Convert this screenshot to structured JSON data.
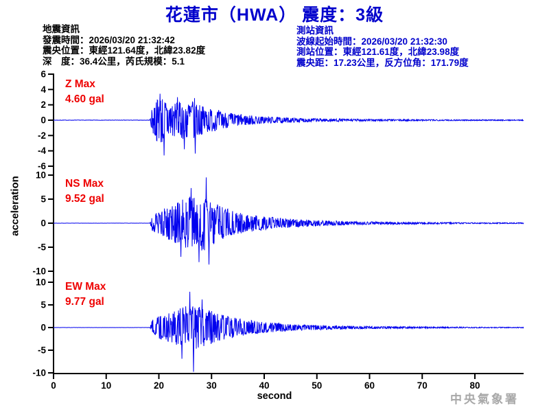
{
  "title": {
    "text": "花蓮市（HWA） 震度：3級",
    "color": "#0000CC"
  },
  "quake_info": {
    "heading": "地震資訊",
    "lines": [
      "發震時間：2026/03/20 21:32:42",
      "震央位置：東經121.64度，北緯23.82度",
      "深　度：36.4公里，芮氏規模：5.1"
    ],
    "color": "#000000"
  },
  "station_info": {
    "heading": "測站資訊",
    "lines": [
      "波線起始時間：2026/03/20 21:32:30",
      "測站位置：東經121.61度，北緯23.98度",
      "震央距：17.23公里，反方位角：171.79度"
    ],
    "color": "#0000CC"
  },
  "watermark": {
    "text": "中央氣象署",
    "color": "#A8A8A8"
  },
  "chart_data": {
    "type": "line",
    "title": "three-component strong-motion accelerogram",
    "xlabel": "second",
    "ylabel": "acceleration",
    "x_ticks": [
      0,
      10,
      20,
      30,
      40,
      50,
      60,
      70,
      80
    ],
    "x_range": [
      0,
      89.25
    ],
    "grid": false,
    "legend": "none",
    "wave_color": "#0000EE",
    "axis_color": "#000000",
    "label_color": "#EE0000",
    "onset_s": 18.3,
    "panels": [
      {
        "name": "Z",
        "label": "Z Max",
        "max_label": "4.60 gal",
        "max_gal": 4.6,
        "ylim": [
          -6,
          6
        ],
        "y_ticks": [
          6,
          4,
          2,
          0,
          -2,
          -4,
          -6
        ],
        "envelope": [
          [
            0,
            0.02
          ],
          [
            18.3,
            0.02
          ],
          [
            18.7,
            1.5
          ],
          [
            19.3,
            2.6
          ],
          [
            20.3,
            3.2
          ],
          [
            21.3,
            2.7
          ],
          [
            23,
            2.3
          ],
          [
            25,
            2.5
          ],
          [
            26.8,
            2.9
          ],
          [
            28,
            1.9
          ],
          [
            30,
            1.5
          ],
          [
            33,
            1.0
          ],
          [
            36,
            0.7
          ],
          [
            40,
            0.45
          ],
          [
            45,
            0.3
          ],
          [
            50,
            0.22
          ],
          [
            55,
            0.16
          ],
          [
            60,
            0.13
          ],
          [
            70,
            0.09
          ],
          [
            80,
            0.07
          ],
          [
            89.25,
            0.06
          ]
        ],
        "spikes": [
          [
            20.2,
            3.45
          ],
          [
            21.0,
            -4.6
          ],
          [
            23.5,
            3.0
          ],
          [
            24.8,
            -3.8
          ],
          [
            26.9,
            -4.35
          ]
        ]
      },
      {
        "name": "NS",
        "label": "NS Max",
        "max_label": "9.52 gal",
        "max_gal": 9.52,
        "ylim": [
          -10,
          10
        ],
        "y_ticks": [
          10,
          5,
          0,
          -5,
          -10
        ],
        "envelope": [
          [
            0,
            0.02
          ],
          [
            18.3,
            0.02
          ],
          [
            18.8,
            1.7
          ],
          [
            20,
            2.5
          ],
          [
            21.5,
            3.3
          ],
          [
            23,
            4.1
          ],
          [
            24.5,
            5.0
          ],
          [
            26,
            5.7
          ],
          [
            27.5,
            6.1
          ],
          [
            29,
            5.5
          ],
          [
            30.5,
            4.3
          ],
          [
            32,
            3.4
          ],
          [
            34,
            2.6
          ],
          [
            36,
            2.0
          ],
          [
            40,
            1.4
          ],
          [
            45,
            0.9
          ],
          [
            50,
            0.6
          ],
          [
            55,
            0.42
          ],
          [
            60,
            0.3
          ],
          [
            70,
            0.18
          ],
          [
            80,
            0.12
          ],
          [
            89.25,
            0.1
          ]
        ],
        "spikes": [
          [
            24.2,
            -7.0
          ],
          [
            26.1,
            7.3
          ],
          [
            27.6,
            -8.1
          ],
          [
            29.0,
            9.52
          ],
          [
            29.5,
            -8.6
          ]
        ]
      },
      {
        "name": "EW",
        "label": "EW Max",
        "max_label": "9.77 gal",
        "max_gal": 9.77,
        "ylim": [
          -10,
          10
        ],
        "y_ticks": [
          10,
          5,
          0,
          -5,
          -10
        ],
        "envelope": [
          [
            0,
            0.02
          ],
          [
            18.3,
            0.02
          ],
          [
            18.8,
            1.8
          ],
          [
            20,
            2.5
          ],
          [
            21.5,
            3.1
          ],
          [
            23,
            3.7
          ],
          [
            24.5,
            4.5
          ],
          [
            26,
            5.1
          ],
          [
            27.5,
            4.7
          ],
          [
            29,
            4.1
          ],
          [
            31,
            3.3
          ],
          [
            33,
            2.6
          ],
          [
            35,
            2.0
          ],
          [
            38,
            1.5
          ],
          [
            42,
            1.0
          ],
          [
            46,
            0.72
          ],
          [
            50,
            0.52
          ],
          [
            55,
            0.36
          ],
          [
            60,
            0.26
          ],
          [
            70,
            0.16
          ],
          [
            80,
            0.11
          ],
          [
            89.25,
            0.09
          ]
        ],
        "spikes": [
          [
            24.4,
            -6.9
          ],
          [
            25.9,
            7.9
          ],
          [
            26.6,
            -9.77
          ],
          [
            28.2,
            6.2
          ]
        ]
      }
    ]
  }
}
